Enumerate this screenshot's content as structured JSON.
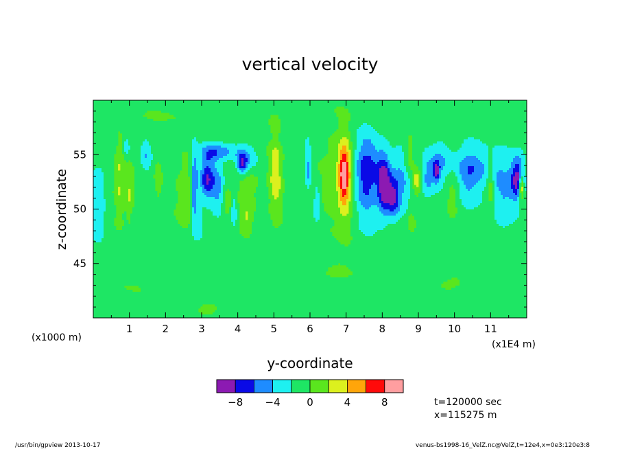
{
  "chart_data": {
    "type": "heatmap",
    "title": "vertical velocity",
    "xlabel": "y-coordinate",
    "ylabel": "z-coordinate",
    "x_unit_note": "(x1E4 m)",
    "y_unit_note": "(x1000 m)",
    "xlim": [
      0,
      12
    ],
    "ylim": [
      40,
      60
    ],
    "x_ticks": [
      "1",
      "2",
      "3",
      "4",
      "5",
      "6",
      "7",
      "8",
      "9",
      "10",
      "11"
    ],
    "y_ticks": [
      "45",
      "50",
      "55"
    ],
    "colorbar": {
      "levels": [
        -10,
        -8,
        -6,
        -4,
        -2,
        0,
        2,
        4,
        6,
        8,
        10
      ],
      "tick_labels": [
        "−8",
        "−4",
        "0",
        "4",
        "8"
      ],
      "colors": [
        "#8c1ab2",
        "#0a0ae6",
        "#1e8cff",
        "#1ef0f0",
        "#1ee664",
        "#5ae61e",
        "#dcf01e",
        "#ffa50a",
        "#ff0a0a",
        "#ff9ea0"
      ]
    },
    "background_value": -0.8,
    "features": [
      {
        "y": 0.13,
        "z": 49.8,
        "v": -2.7,
        "sy": 0.14,
        "sz": 2.6
      },
      {
        "y": 0.72,
        "z": 53.0,
        "v": 2.8,
        "sy": 0.1,
        "sz": 2.6
      },
      {
        "y": 0.93,
        "z": 55.7,
        "v": -2.6,
        "sy": 0.06,
        "sz": 0.6
      },
      {
        "y": 1.0,
        "z": 51.5,
        "v": 2.6,
        "sy": 0.08,
        "sz": 1.7
      },
      {
        "y": 1.45,
        "z": 55.0,
        "v": -3.2,
        "sy": 0.12,
        "sz": 1.2
      },
      {
        "y": 1.8,
        "z": 52.8,
        "v": 2.8,
        "sy": 0.08,
        "sz": 1.3
      },
      {
        "y": 2.55,
        "z": 51.2,
        "v": 1.6,
        "sy": 0.18,
        "sz": 3.0
      },
      {
        "y": 2.8,
        "z": 52.0,
        "v": -5.5,
        "sy": 0.07,
        "sz": 2.6
      },
      {
        "y": 2.95,
        "z": 48.8,
        "v": -3.0,
        "sy": 0.05,
        "sz": 1.0
      },
      {
        "y": 3.2,
        "z": 55.1,
        "v": -4.2,
        "sy": 0.22,
        "sz": 0.7
      },
      {
        "y": 3.15,
        "z": 52.7,
        "v": -7.2,
        "sy": 0.14,
        "sz": 1.2
      },
      {
        "y": 3.45,
        "z": 51.8,
        "v": -3.5,
        "sy": 0.12,
        "sz": 1.6
      },
      {
        "y": 3.65,
        "z": 55.3,
        "v": -2.8,
        "sy": 0.3,
        "sz": 0.5
      },
      {
        "y": 3.7,
        "z": 50.8,
        "v": 2.4,
        "sy": 0.08,
        "sz": 1.0
      },
      {
        "y": 3.9,
        "z": 49.8,
        "v": -3.0,
        "sy": 0.06,
        "sz": 1.3
      },
      {
        "y": 4.12,
        "z": 54.2,
        "v": -6.5,
        "sy": 0.1,
        "sz": 0.7
      },
      {
        "y": 4.3,
        "z": 54.6,
        "v": -3.2,
        "sy": 0.2,
        "sz": 1.0
      },
      {
        "y": 4.25,
        "z": 52.3,
        "v": 1.8,
        "sy": 0.22,
        "sz": 1.6
      },
      {
        "y": 4.25,
        "z": 49.0,
        "v": 2.8,
        "sy": 0.12,
        "sz": 1.0
      },
      {
        "y": 5.05,
        "z": 53.0,
        "v": 4.4,
        "sy": 0.13,
        "sz": 2.8
      },
      {
        "y": 5.95,
        "z": 53.8,
        "v": -4.0,
        "sy": 0.06,
        "sz": 1.5
      },
      {
        "y": 6.2,
        "z": 50.6,
        "v": -3.0,
        "sy": 0.08,
        "sz": 1.4
      },
      {
        "y": 6.5,
        "z": 51.8,
        "v": 1.9,
        "sy": 0.2,
        "sz": 2.4
      },
      {
        "y": 6.95,
        "z": 53.2,
        "v": 8.5,
        "sy": 0.1,
        "sz": 1.8
      },
      {
        "y": 7.0,
        "z": 53.0,
        "v": 3.5,
        "sy": 0.22,
        "sz": 3.4
      },
      {
        "y": 7.5,
        "z": 52.5,
        "v": -4.5,
        "sy": 0.25,
        "sz": 3.0
      },
      {
        "y": 7.7,
        "z": 53.8,
        "v": -3.3,
        "sy": 0.3,
        "sz": 2.0
      },
      {
        "y": 8.05,
        "z": 52.3,
        "v": -8.0,
        "sy": 0.12,
        "sz": 1.8
      },
      {
        "y": 8.3,
        "z": 51.0,
        "v": -6.0,
        "sy": 0.12,
        "sz": 1.2
      },
      {
        "y": 8.55,
        "z": 52.5,
        "v": -3.4,
        "sy": 0.22,
        "sz": 2.0
      },
      {
        "y": 8.75,
        "z": 54.7,
        "v": 2.8,
        "sy": 0.1,
        "sz": 1.5
      },
      {
        "y": 8.95,
        "z": 52.6,
        "v": 4.5,
        "sy": 0.09,
        "sz": 0.8
      },
      {
        "y": 8.8,
        "z": 49.0,
        "v": 2.2,
        "sy": 0.08,
        "sz": 0.6
      },
      {
        "y": 9.25,
        "z": 52.9,
        "v": -3.3,
        "sy": 0.12,
        "sz": 1.4
      },
      {
        "y": 9.6,
        "z": 54.3,
        "v": -3.4,
        "sy": 0.25,
        "sz": 1.6
      },
      {
        "y": 9.5,
        "z": 53.5,
        "v": -6.0,
        "sy": 0.07,
        "sz": 0.7
      },
      {
        "y": 9.95,
        "z": 51.5,
        "v": 2.6,
        "sy": 0.14,
        "sz": 1.8
      },
      {
        "y": 10.4,
        "z": 52.5,
        "v": -3.2,
        "sy": 0.25,
        "sz": 2.0
      },
      {
        "y": 10.6,
        "z": 54.0,
        "v": -2.6,
        "sy": 0.4,
        "sz": 1.2
      },
      {
        "y": 11.0,
        "z": 52.0,
        "v": 3.6,
        "sy": 0.07,
        "sz": 1.7
      },
      {
        "y": 11.35,
        "z": 52.0,
        "v": -3.5,
        "sy": 0.3,
        "sz": 2.5
      },
      {
        "y": 11.75,
        "z": 52.8,
        "v": -7.0,
        "sy": 0.12,
        "sz": 1.3
      },
      {
        "y": 11.85,
        "z": 52.0,
        "v": 8.4,
        "sy": 0.05,
        "sz": 0.8
      },
      {
        "y": 5.5,
        "z": 56.5,
        "v": -0.7,
        "sy": 0.6,
        "sz": 0.4
      },
      {
        "y": 1.0,
        "z": 43.0,
        "v": 0.9,
        "sy": 0.4,
        "sz": 0.6
      },
      {
        "y": 3.3,
        "z": 41.0,
        "v": 1.0,
        "sy": 0.3,
        "sz": 0.5
      },
      {
        "y": 6.7,
        "z": 44.0,
        "v": 0.9,
        "sy": 0.5,
        "sz": 0.5
      },
      {
        "y": 9.8,
        "z": 43.0,
        "v": 1.0,
        "sy": 0.4,
        "sz": 0.5
      },
      {
        "y": 2.0,
        "z": 58.5,
        "v": 0.8,
        "sy": 0.8,
        "sz": 0.4
      },
      {
        "y": 11.3,
        "z": 58.0,
        "v": 0.9,
        "sy": 0.4,
        "sz": 0.4
      }
    ]
  },
  "info": {
    "time": "t=120000 sec",
    "position": "x=115275 m"
  },
  "footer": {
    "left": "/usr/bin/gpview  2013-10-17",
    "right": "venus-bs1998-16_VelZ.nc@VelZ,t=12e4,x=0e3:120e3:8"
  }
}
